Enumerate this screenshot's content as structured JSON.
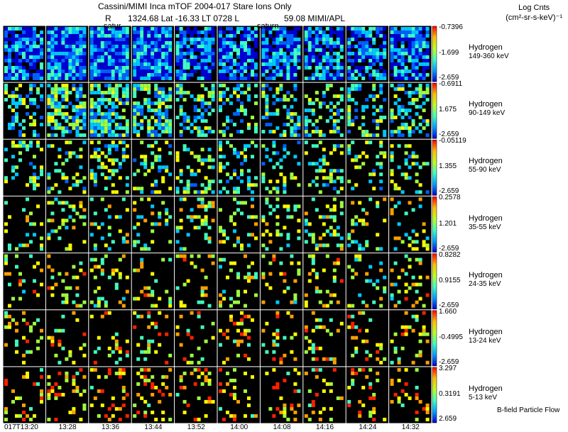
{
  "header": {
    "title": "Cassini/MIMI Inca mTOF  2004-017   Stare   Ions Only",
    "subtitle_r": "R",
    "subtitle_pos": "1324.68 Lat -16.33 LT 0728 L",
    "subtitle_l": "59.08  MIMI/APL",
    "legend_title": "Log Cnts",
    "legend_units": "(cm²-sr-s-keV)⁻¹"
  },
  "tags": {
    "saturn_left": "satur",
    "saturn_right": "saturn"
  },
  "footer": "B-field Particle Flow",
  "colors": {
    "background": "#000000",
    "grid": "#ffffff",
    "frame": "#ffffff"
  },
  "chart_data": {
    "type": "heatmap",
    "time_labels": [
      "017T13:20",
      "13:28",
      "13:36",
      "13:44",
      "13:52",
      "14:00",
      "14:08",
      "14:16",
      "14:24",
      "14:32"
    ],
    "colormap": [
      "#0000d0",
      "#0060ff",
      "#00c8ff",
      "#40ffc0",
      "#a0ff40",
      "#ffff00",
      "#ffa000",
      "#ff2000"
    ],
    "rows": [
      {
        "species": "Hydrogen",
        "energy": "149-360 keV",
        "cbar_max": "-0.7396",
        "cbar_mid": "-1.699",
        "cbar_min": "-2.659",
        "density": 0.82,
        "bias": 0.18
      },
      {
        "species": "Hydrogen",
        "energy": "90-149 keV",
        "cbar_max": "-0.6911",
        "cbar_mid": "1.675",
        "cbar_min": "-2.659",
        "density": 0.38,
        "bias": 0.4
      },
      {
        "species": "Hydrogen",
        "energy": "55-90 keV",
        "cbar_max": "-0.05119",
        "cbar_mid": "1.355",
        "cbar_min": "-2.659",
        "density": 0.26,
        "bias": 0.48
      },
      {
        "species": "Hydrogen",
        "energy": "35-55 keV",
        "cbar_max": "0.2578",
        "cbar_mid": "1.201",
        "cbar_min": "-2.659",
        "density": 0.2,
        "bias": 0.55
      },
      {
        "species": "Hydrogen",
        "energy": "24-35 keV",
        "cbar_max": "0.8282",
        "cbar_mid": "0.9155",
        "cbar_min": "-2.659",
        "density": 0.18,
        "bias": 0.62
      },
      {
        "species": "Hydrogen",
        "energy": "13-24 keV",
        "cbar_max": "1.660",
        "cbar_mid": "-0.4995",
        "cbar_min": "-2.659",
        "density": 0.16,
        "bias": 0.68
      },
      {
        "species": "Hydrogen",
        "energy": "5-13 keV",
        "cbar_max": "3.297",
        "cbar_mid": "0.3191",
        "cbar_min": "2.659",
        "density": 0.18,
        "bias": 0.74
      }
    ]
  }
}
